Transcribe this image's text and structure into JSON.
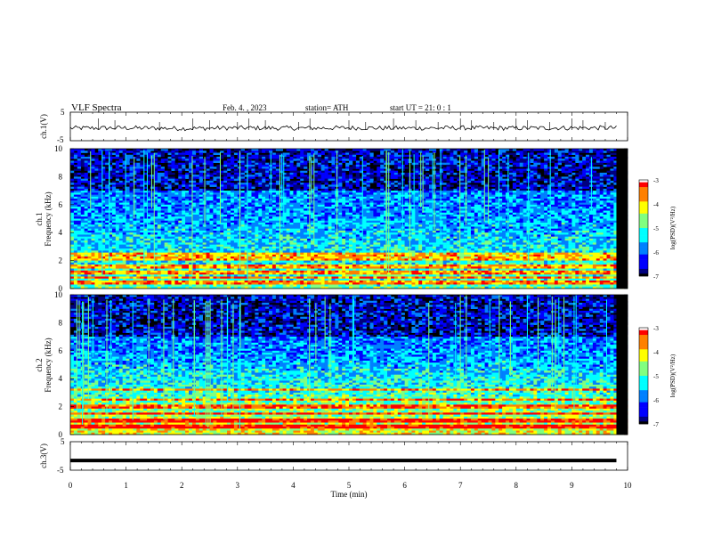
{
  "header": {
    "title": "VLF  Spectra",
    "date": "Feb. 4. , 2023",
    "station": "station= ATH",
    "start": "start  UT  =   21: 0  : 1"
  },
  "chart_data": [
    {
      "type": "line",
      "name": "ch1-waveform",
      "ylabel": "ch.1(V)",
      "ylim": [
        -5,
        5
      ],
      "yticks": [
        "5",
        "-5"
      ],
      "xlim": [
        0,
        10
      ],
      "x": [
        0.0,
        1.0,
        2.0,
        3.0,
        4.0,
        5.0,
        6.0,
        7.0,
        8.0,
        9.0,
        9.8
      ],
      "values": [
        -0.6,
        -0.5,
        -0.7,
        -0.5,
        -0.6,
        -0.5,
        -0.6,
        -0.5,
        -0.6,
        -0.5,
        -0.5
      ]
    },
    {
      "type": "heatmap",
      "name": "ch1-spectrogram",
      "ylabel": "ch.1\nFrequency (kHz)",
      "ylim": [
        0,
        10
      ],
      "yticks": [
        "0",
        "2",
        "4",
        "6",
        "8",
        "10"
      ],
      "xlim": [
        0,
        10
      ],
      "colorbar": {
        "label": "log(PSD)(V²/Hz)",
        "ticks": [
          "-3",
          "-4",
          "-5",
          "-6",
          "-7"
        ],
        "range": [
          -7,
          -3
        ]
      },
      "bright_bands_khz": [
        0.4,
        0.8,
        1.1,
        1.6,
        2.1,
        2.4
      ]
    },
    {
      "type": "heatmap",
      "name": "ch2-spectrogram",
      "ylabel": "ch.2\nFrequency (kHz)",
      "ylim": [
        0,
        10
      ],
      "yticks": [
        "0",
        "2",
        "4",
        "6",
        "8",
        "10"
      ],
      "xlim": [
        0,
        10
      ],
      "colorbar": {
        "label": "log(PSD)(V²/Hz)",
        "ticks": [
          "-3",
          "-4",
          "-5",
          "-6",
          "-7"
        ],
        "range": [
          -7,
          -3
        ]
      },
      "bright_bands_khz": [
        0.6,
        1.0,
        1.5,
        2.0,
        2.5,
        3.2
      ]
    },
    {
      "type": "line",
      "name": "ch3-waveform",
      "ylabel": "ch.3(V)",
      "ylim": [
        -5,
        5
      ],
      "yticks": [
        "5",
        "-5"
      ],
      "xlim": [
        0,
        10
      ],
      "x": [
        0.0,
        9.8
      ],
      "values": [
        -1.6,
        -1.6
      ]
    }
  ],
  "xaxis": {
    "label": "Time  (min)",
    "ticks": [
      "0",
      "1",
      "2",
      "3",
      "4",
      "5",
      "6",
      "7",
      "8",
      "9",
      "10"
    ]
  },
  "colors": {
    "jet": [
      "#000000",
      "#00007f",
      "#0000ff",
      "#0080ff",
      "#00ffff",
      "#80ff80",
      "#ffff00",
      "#ff8000",
      "#ff0000",
      "#ffffff"
    ]
  }
}
